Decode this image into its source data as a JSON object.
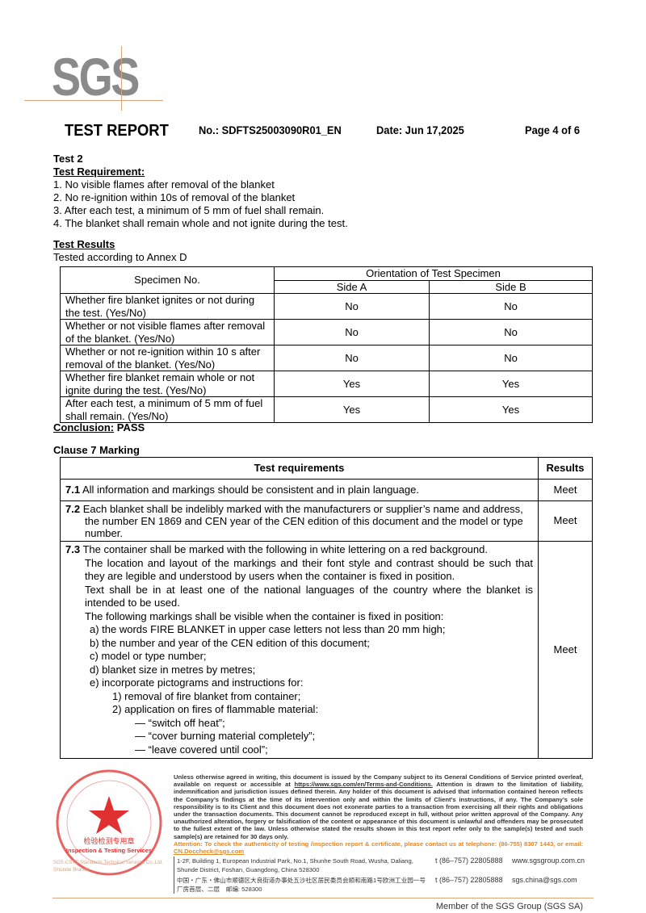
{
  "logo": "SGS",
  "header": {
    "title": "TEST REPORT",
    "number": "No.: SDFTS25003090R01_EN",
    "date": "Date: Jun 17,2025",
    "page": "Page 4 of 6"
  },
  "test2": {
    "heading": "Test 2",
    "req_heading": "Test Requirement:",
    "requirements": [
      "1. No visible flames after removal of the blanket",
      "2. No re-ignition within 10s of removal of the blanket",
      "3. After each test, a minimum of 5 mm of fuel shall remain.",
      "4. The blanket shall remain whole and not ignite during the test."
    ],
    "results_heading": "Test Results",
    "tested_according": "Tested according to Annex D"
  },
  "table1": {
    "col_specimen": "Specimen No.",
    "col_orientation": "Orientation of Test Specimen",
    "side_a": "Side A",
    "side_b": "Side B",
    "rows": [
      {
        "label": "Whether fire blanket ignites or not during the test. (Yes/No)",
        "a": "No",
        "b": "No"
      },
      {
        "label": "Whether or not visible flames after removal of the blanket. (Yes/No)",
        "a": "No",
        "b": "No"
      },
      {
        "label": "Whether or not re-ignition within 10 s after removal of the blanket. (Yes/No)",
        "a": "No",
        "b": "No"
      },
      {
        "label": "Whether fire blanket remain whole or not ignite during the test. (Yes/No)",
        "a": "Yes",
        "b": "Yes"
      },
      {
        "label": "After each test, a minimum of 5 mm of fuel shall remain. (Yes/No)",
        "a": "Yes",
        "b": "Yes"
      }
    ]
  },
  "conclusion": {
    "label": "Conclusion:",
    "value": "PASS"
  },
  "clause7": {
    "heading": "Clause 7 Marking",
    "col_req": "Test requirements",
    "col_results": "Results",
    "r71": {
      "num": "7.1",
      "text": "All information and markings should be consistent and in plain language.",
      "result": "Meet"
    },
    "r72": {
      "num": "7.2",
      "text": "Each blanket shall be indelibly marked with the manufacturers or supplier’s name and address, the number EN 1869 and CEN year of the CEN edition of this document and the model or type number.",
      "result": "Meet"
    },
    "r73": {
      "num": "7.3",
      "first": "The container shall be marked with the following in white lettering on a red background.",
      "paras": [
        "The location and layout of the markings and their font style and contrast should be such that they are legible and understood by users when the container is fixed in position.",
        "Text shall be in at least one of the national languages of the country where the blanket is intended to be used.",
        "The following markings shall be visible when the container is fixed in position:"
      ],
      "items": [
        "a) the words FIRE BLANKET in upper case letters not less than 20 mm high;",
        "b) the number and year of the CEN edition of this document;",
        "c) model or type number;",
        "d) blanket size in metres by metres;",
        "e) incorporate pictograms and instructions for:"
      ],
      "sub": [
        "1) removal of fire blanket from container;",
        "2) application on fires of flammable material:"
      ],
      "subsub": [
        "— “switch off heat”;",
        "— “cover burning material completely”;",
        "— “leave covered until cool”;"
      ],
      "result": "Meet"
    }
  },
  "footer": {
    "disclaimer_pre": "Unless otherwise agreed in writing, this document is issued by the Company subject to its General Conditions of Service printed overleaf, available on request or accessible at ",
    "terms_link": "https://www.sgs.com/en/Terms-and-Conditions.",
    "disclaimer_post": " Attention is drawn to the limitation of liability, indemnification and jurisdiction issues defined therein. Any holder of this document is advised that information contained hereon reflects the Company’s findings at the time of its intervention only and within the limits of Client’s instructions, if any. The Company’s sole responsibility is to its Client and this document does not exonerate parties to a transaction from exercising all their rights and obligations under the transaction documents. This document cannot be reproduced except in full, without prior written approval of the Company. Any unauthorized alteration, forgery or falsification of the content or appearance of this document is unlawful and offenders may be prosecuted to the fullest extent of the law. Unless otherwise stated the results shown in this test report refer only to the sample(s) tested and such sample(s) are retained for 30 days only.",
    "attention": "Attention: To check the authenticity of testing /inspection report & certificate, please contact us at telephone: (86-755) 8307 1443, or email: ",
    "email": "CN.Doccheck@sgs.com",
    "addr_en": "1-2F, Building 1, European Industrial Park, No.1, Shunhe South Road, Wusha, Daliang, Shunde District, Foshan, Guangdong, China 528300",
    "addr_cn": "中国・广东・佛山市顺德区大良街道办事处五沙社区居民委员会顺和南路1号欧洲工业园一号厂房首层、二层　邮编: 528300",
    "tel1": "t (86–757) 22805888",
    "tel2": "t (86–757) 22805888",
    "web": "www.sgsgroup.com.cn",
    "mail": "sgs.china@sgs.com",
    "member": "Member of the SGS Group (SGS SA)"
  },
  "stamp": {
    "text_cn": "检验检测专用章",
    "text_en": "Inspection & Testing Services",
    "company": "SGS-CSTC Standards Technical Services Co., Ltd. Shunde Branch"
  },
  "colors": {
    "logo_gray": "#8a8a8a",
    "accent_orange": "#d9a57a",
    "stamp_red": "#e03030",
    "attention": "#e08a2a"
  }
}
